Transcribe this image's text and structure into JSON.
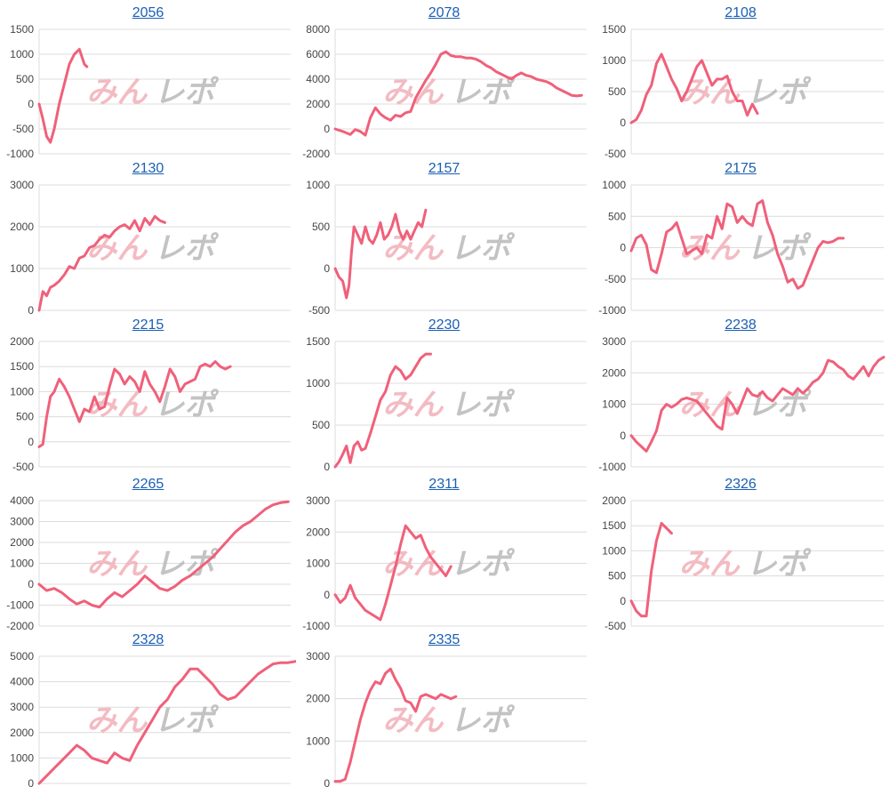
{
  "colors": {
    "line": "#f0607a",
    "grid": "#dcdcdc",
    "title": "#1a5fb4",
    "watermark_pink": "#f2b0b8",
    "watermark_gray": "#b9b9b9"
  },
  "watermark": {
    "text": "みんレポ"
  },
  "chart_data": [
    {
      "type": "line",
      "title": "2056",
      "ylim": [
        -1000,
        1500
      ],
      "yticks": [
        -1000,
        -500,
        0,
        500,
        1000,
        1500
      ],
      "xlim": [
        0,
        100
      ],
      "x": [
        0,
        1.5,
        3,
        4.5,
        6,
        8,
        10,
        12,
        14,
        16,
        17,
        18,
        19
      ],
      "y": [
        0,
        -300,
        -650,
        -770,
        -500,
        0,
        400,
        800,
        1000,
        1100,
        950,
        800,
        750
      ]
    },
    {
      "type": "line",
      "title": "2078",
      "ylim": [
        -2000,
        8000
      ],
      "yticks": [
        -2000,
        0,
        2000,
        4000,
        6000,
        8000
      ],
      "xlim": [
        0,
        100
      ],
      "x": [
        0,
        3,
        6,
        8,
        10,
        12,
        14,
        16,
        18,
        20,
        22,
        24,
        26,
        28,
        30,
        32,
        34,
        36,
        38,
        40,
        42,
        44,
        46,
        48,
        50,
        52,
        54,
        56,
        58,
        60,
        62,
        64,
        66,
        68,
        70,
        72,
        74,
        76,
        78,
        80,
        82,
        84,
        86,
        88,
        90,
        92,
        94,
        96,
        98
      ],
      "y": [
        0,
        -200,
        -450,
        -50,
        -200,
        -500,
        900,
        1700,
        1200,
        900,
        700,
        1100,
        1000,
        1300,
        1400,
        2500,
        3200,
        3900,
        4500,
        5200,
        6000,
        6200,
        5900,
        5800,
        5800,
        5700,
        5700,
        5600,
        5400,
        5100,
        4900,
        4600,
        4400,
        4200,
        4000,
        4300,
        4500,
        4300,
        4200,
        4000,
        3900,
        3800,
        3600,
        3300,
        3100,
        2900,
        2700,
        2650,
        2700
      ]
    },
    {
      "type": "line",
      "title": "2108",
      "ylim": [
        -500,
        1500
      ],
      "yticks": [
        -500,
        0,
        500,
        1000,
        1500
      ],
      "xlim": [
        0,
        100
      ],
      "x": [
        0,
        2,
        4,
        6,
        8,
        10,
        12,
        14,
        16,
        18,
        20,
        22,
        24,
        26,
        28,
        30,
        32,
        34,
        36,
        38,
        40,
        42,
        44,
        46,
        48,
        50
      ],
      "y": [
        0,
        50,
        200,
        450,
        600,
        950,
        1100,
        900,
        700,
        550,
        350,
        500,
        700,
        900,
        1000,
        800,
        600,
        700,
        700,
        750,
        500,
        350,
        350,
        120,
        300,
        150
      ]
    },
    {
      "type": "line",
      "title": "2130",
      "ylim": [
        0,
        3000
      ],
      "yticks": [
        0,
        1000,
        2000,
        3000
      ],
      "xlim": [
        0,
        100
      ],
      "x": [
        0,
        1.5,
        3,
        4.5,
        6,
        8,
        10,
        12,
        14,
        16,
        18,
        20,
        22,
        24,
        26,
        28,
        30,
        32,
        34,
        36,
        38,
        40,
        42,
        44,
        46,
        48,
        50
      ],
      "y": [
        0,
        450,
        350,
        550,
        600,
        700,
        850,
        1050,
        1000,
        1250,
        1300,
        1500,
        1550,
        1700,
        1800,
        1750,
        1900,
        2000,
        2050,
        1950,
        2150,
        1900,
        2200,
        2050,
        2250,
        2150,
        2100
      ]
    },
    {
      "type": "line",
      "title": "2157",
      "ylim": [
        -500,
        1000
      ],
      "yticks": [
        -500,
        0,
        500,
        1000
      ],
      "xlim": [
        0,
        100
      ],
      "x": [
        0,
        1.5,
        3,
        4.5,
        5.5,
        6.5,
        7.5,
        9,
        10.5,
        12,
        13.5,
        15,
        16.5,
        18,
        19.5,
        21,
        22.5,
        24,
        25.5,
        27,
        28.5,
        30,
        31.5,
        33,
        34.5,
        36
      ],
      "y": [
        0,
        -100,
        -150,
        -350,
        -200,
        200,
        500,
        400,
        300,
        500,
        350,
        300,
        400,
        550,
        350,
        400,
        500,
        650,
        450,
        350,
        450,
        350,
        450,
        550,
        500,
        700
      ]
    },
    {
      "type": "line",
      "title": "2175",
      "ylim": [
        -1000,
        1000
      ],
      "yticks": [
        -1000,
        -500,
        0,
        500,
        1000
      ],
      "xlim": [
        0,
        100
      ],
      "x": [
        0,
        2,
        4,
        6,
        8,
        10,
        12,
        14,
        16,
        18,
        20,
        22,
        24,
        26,
        28,
        30,
        32,
        34,
        36,
        38,
        40,
        42,
        44,
        46,
        48,
        50,
        52,
        54,
        56,
        58,
        60,
        62,
        64,
        66,
        68,
        70,
        72,
        74,
        76,
        78,
        80,
        82,
        84
      ],
      "y": [
        -50,
        150,
        200,
        50,
        -350,
        -400,
        -100,
        250,
        300,
        400,
        150,
        -100,
        -50,
        0,
        -100,
        200,
        150,
        500,
        300,
        700,
        650,
        400,
        500,
        400,
        350,
        700,
        750,
        400,
        200,
        -100,
        -300,
        -550,
        -500,
        -650,
        -600,
        -400,
        -200,
        0,
        100,
        80,
        100,
        150,
        150
      ]
    },
    {
      "type": "line",
      "title": "2215",
      "ylim": [
        -500,
        2000
      ],
      "yticks": [
        -500,
        0,
        500,
        1000,
        1500,
        2000
      ],
      "xlim": [
        0,
        100
      ],
      "x": [
        0,
        1.5,
        3,
        4.5,
        6,
        8,
        10,
        12,
        14,
        16,
        18,
        20,
        22,
        24,
        26,
        28,
        30,
        32,
        34,
        36,
        38,
        40,
        42,
        44,
        46,
        48,
        50,
        52,
        54,
        56,
        58,
        60,
        62,
        64,
        66,
        68,
        70,
        72,
        74,
        76
      ],
      "y": [
        -100,
        -50,
        500,
        900,
        1000,
        1250,
        1100,
        900,
        650,
        400,
        650,
        600,
        900,
        650,
        700,
        1100,
        1450,
        1350,
        1150,
        1300,
        1200,
        1000,
        1400,
        1150,
        1000,
        800,
        1100,
        1450,
        1300,
        1000,
        1150,
        1200,
        1250,
        1500,
        1550,
        1500,
        1600,
        1500,
        1450,
        1500
      ]
    },
    {
      "type": "line",
      "title": "2230",
      "ylim": [
        0,
        1500
      ],
      "yticks": [
        0,
        500,
        1000,
        1500
      ],
      "xlim": [
        0,
        100
      ],
      "x": [
        0,
        1.5,
        3,
        4.5,
        6,
        7.5,
        9,
        10.5,
        12,
        14,
        16,
        18,
        20,
        22,
        24,
        26,
        28,
        30,
        32,
        34,
        36,
        38
      ],
      "y": [
        0,
        60,
        150,
        250,
        50,
        250,
        300,
        200,
        220,
        400,
        600,
        800,
        900,
        1100,
        1200,
        1150,
        1050,
        1100,
        1200,
        1300,
        1350,
        1350
      ]
    },
    {
      "type": "line",
      "title": "2238",
      "ylim": [
        -1000,
        3000
      ],
      "yticks": [
        -1000,
        0,
        1000,
        2000,
        3000
      ],
      "xlim": [
        0,
        100
      ],
      "x": [
        0,
        2,
        4,
        6,
        8,
        10,
        12,
        14,
        16,
        18,
        20,
        22,
        24,
        26,
        28,
        30,
        32,
        34,
        36,
        38,
        40,
        42,
        44,
        46,
        48,
        50,
        52,
        54,
        56,
        58,
        60,
        62,
        64,
        66,
        68,
        70,
        72,
        74,
        76,
        78,
        80,
        82,
        84,
        86,
        88,
        90,
        92,
        94,
        96,
        98,
        100
      ],
      "y": [
        0,
        -200,
        -350,
        -500,
        -200,
        150,
        800,
        1000,
        900,
        1000,
        1150,
        1200,
        1150,
        1100,
        900,
        700,
        500,
        300,
        200,
        1200,
        1000,
        700,
        1100,
        1500,
        1300,
        1250,
        1400,
        1200,
        1100,
        1300,
        1500,
        1400,
        1300,
        1500,
        1350,
        1500,
        1700,
        1800,
        2000,
        2400,
        2350,
        2200,
        2100,
        1900,
        1800,
        2000,
        2200,
        1900,
        2200,
        2400,
        2500
      ]
    },
    {
      "type": "line",
      "title": "2265",
      "ylim": [
        -2000,
        4000
      ],
      "yticks": [
        -2000,
        -1000,
        0,
        1000,
        2000,
        3000,
        4000
      ],
      "xlim": [
        0,
        100
      ],
      "x": [
        0,
        3,
        6,
        9,
        12,
        15,
        18,
        21,
        24,
        27,
        30,
        33,
        36,
        39,
        42,
        45,
        48,
        51,
        54,
        57,
        60,
        63,
        66,
        69,
        72,
        75,
        78,
        81,
        84,
        87,
        90,
        93,
        96,
        99
      ],
      "y": [
        0,
        -300,
        -200,
        -400,
        -700,
        -950,
        -800,
        -1000,
        -1100,
        -700,
        -400,
        -600,
        -300,
        0,
        400,
        100,
        -200,
        -300,
        -100,
        200,
        400,
        700,
        1000,
        1300,
        1700,
        2100,
        2500,
        2800,
        3000,
        3300,
        3600,
        3800,
        3900,
        3950
      ]
    },
    {
      "type": "line",
      "title": "2311",
      "ylim": [
        -1000,
        3000
      ],
      "yticks": [
        -1000,
        0,
        1000,
        2000,
        3000
      ],
      "xlim": [
        0,
        100
      ],
      "x": [
        0,
        2,
        4,
        6,
        8,
        10,
        12,
        14,
        16,
        18,
        20,
        22,
        24,
        26,
        28,
        30,
        32,
        34,
        36,
        38,
        40,
        42,
        44,
        46
      ],
      "y": [
        0,
        -250,
        -100,
        300,
        -100,
        -300,
        -500,
        -600,
        -700,
        -800,
        -300,
        300,
        900,
        1600,
        2200,
        2000,
        1800,
        1900,
        1500,
        1200,
        1000,
        800,
        600,
        900
      ]
    },
    {
      "type": "line",
      "title": "2326",
      "ylim": [
        -500,
        2000
      ],
      "yticks": [
        -500,
        0,
        500,
        1000,
        1500,
        2000
      ],
      "xlim": [
        0,
        100
      ],
      "x": [
        0,
        2,
        4,
        6,
        8,
        10,
        12,
        14,
        16
      ],
      "y": [
        0,
        -200,
        -300,
        -300,
        600,
        1200,
        1550,
        1450,
        1350
      ]
    },
    {
      "type": "line",
      "title": "2328",
      "ylim": [
        0,
        5000
      ],
      "yticks": [
        0,
        1000,
        2000,
        3000,
        4000,
        5000
      ],
      "xlim": [
        0,
        100
      ],
      "x": [
        0,
        3,
        6,
        9,
        12,
        15,
        18,
        21,
        24,
        27,
        30,
        33,
        36,
        39,
        42,
        45,
        48,
        51,
        54,
        57,
        60,
        63,
        66,
        69,
        72,
        75,
        78,
        81,
        84,
        87,
        90,
        93,
        96,
        99,
        102
      ],
      "y": [
        0,
        300,
        600,
        900,
        1200,
        1500,
        1300,
        1000,
        900,
        800,
        1200,
        1000,
        900,
        1500,
        2000,
        2500,
        3000,
        3300,
        3800,
        4100,
        4500,
        4500,
        4200,
        3900,
        3500,
        3300,
        3400,
        3700,
        4000,
        4300,
        4500,
        4700,
        4750,
        4750,
        4800
      ]
    },
    {
      "type": "line",
      "title": "2335",
      "ylim": [
        0,
        3000
      ],
      "yticks": [
        0,
        1000,
        2000,
        3000
      ],
      "xlim": [
        0,
        100
      ],
      "x": [
        0,
        2,
        4,
        6,
        8,
        10,
        12,
        14,
        16,
        18,
        20,
        22,
        24,
        26,
        28,
        30,
        32,
        34,
        36,
        38,
        40,
        42,
        44,
        46,
        48
      ],
      "y": [
        50,
        50,
        100,
        500,
        1000,
        1500,
        1900,
        2200,
        2400,
        2350,
        2600,
        2700,
        2450,
        2250,
        1950,
        1900,
        1700,
        2050,
        2100,
        2050,
        2000,
        2100,
        2050,
        2000,
        2050
      ]
    }
  ]
}
